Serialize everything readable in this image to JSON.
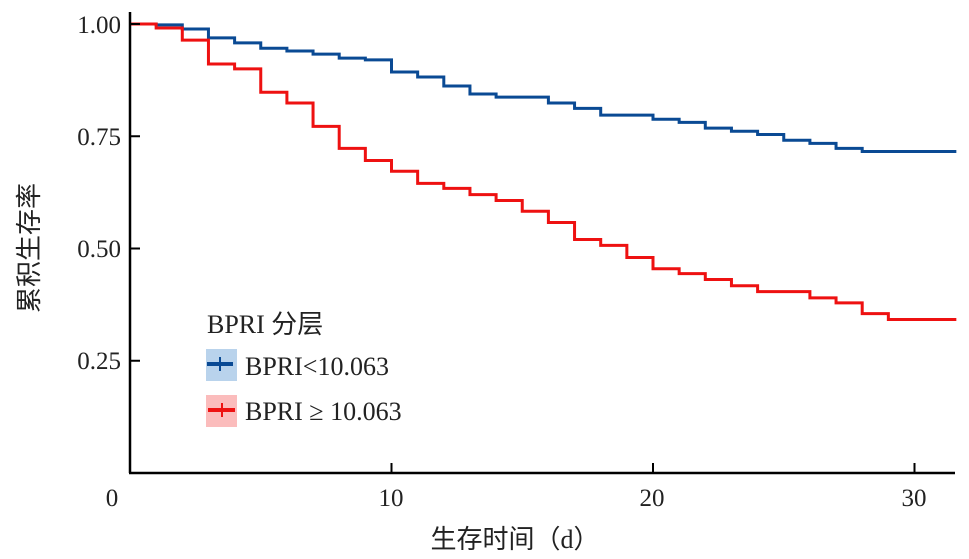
{
  "chart_data": {
    "type": "line",
    "subtype": "kaplan-meier step",
    "xlabel": "生存时间（d）",
    "ylabel": "累积生存率",
    "xlim": [
      0,
      31.6
    ],
    "ylim": [
      0,
      1.0
    ],
    "xticks": [
      "0",
      "10",
      "20",
      "30"
    ],
    "xtick_values": [
      0,
      10,
      20,
      30
    ],
    "yticks": [
      "0.25",
      "0.50",
      "0.75",
      "1.00"
    ],
    "ytick_values": [
      0.25,
      0.5,
      0.75,
      1.0
    ],
    "grid": false,
    "legend": {
      "title": "BPRI 分层",
      "placement": "bottom-left",
      "entries": [
        "BPRI<10.063",
        "BPRI ≥ 10.063"
      ]
    },
    "series": [
      {
        "name": "BPRI<10.063",
        "color": "#0a4a94",
        "band_color": "#b9d3ec",
        "x": [
          0,
          1,
          2,
          3,
          4,
          5,
          6,
          7,
          8,
          9,
          10,
          11,
          12,
          13,
          14,
          16,
          17,
          18,
          20,
          21,
          22,
          23,
          24,
          25,
          26,
          27,
          28,
          31.6
        ],
        "y": [
          1.0,
          0.998,
          0.989,
          0.969,
          0.958,
          0.946,
          0.94,
          0.933,
          0.924,
          0.92,
          0.893,
          0.882,
          0.862,
          0.844,
          0.837,
          0.824,
          0.812,
          0.797,
          0.788,
          0.781,
          0.768,
          0.761,
          0.754,
          0.741,
          0.734,
          0.723,
          0.716,
          0.716
        ]
      },
      {
        "name": "BPRI ≥ 10.063",
        "color": "#ee1111",
        "band_color": "#fbbcbc",
        "x": [
          0,
          1,
          2,
          3,
          4,
          5,
          6,
          7,
          8,
          9,
          10,
          11,
          12,
          13,
          14,
          15,
          16,
          17,
          18,
          19,
          20,
          21,
          22,
          23,
          24,
          26,
          27,
          28,
          29,
          31.6
        ],
        "y": [
          1.0,
          0.991,
          0.964,
          0.911,
          0.9,
          0.848,
          0.824,
          0.772,
          0.723,
          0.696,
          0.672,
          0.645,
          0.634,
          0.62,
          0.607,
          0.583,
          0.558,
          0.52,
          0.507,
          0.48,
          0.455,
          0.444,
          0.431,
          0.417,
          0.404,
          0.39,
          0.379,
          0.355,
          0.342,
          0.342
        ]
      }
    ]
  }
}
